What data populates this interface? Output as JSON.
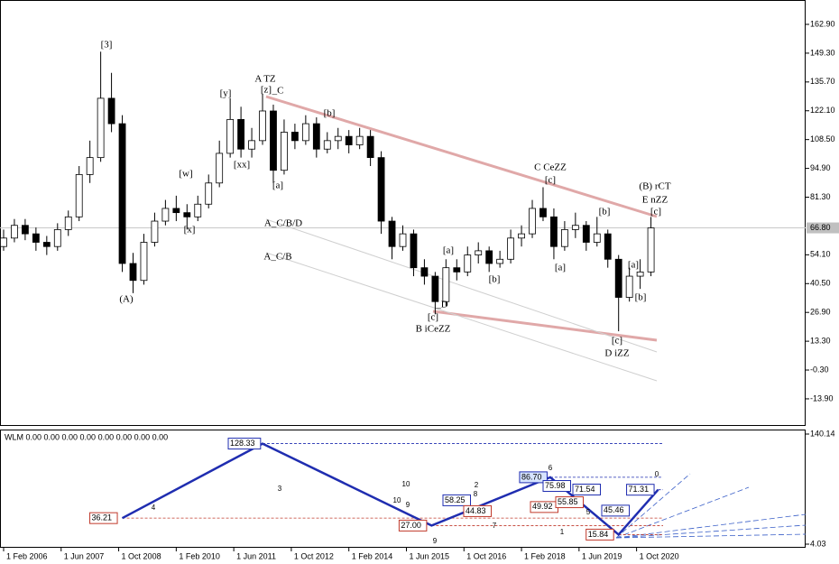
{
  "chart_data": [
    {
      "type": "candlestick",
      "x": [
        "2006-02-01",
        "2006-05-01",
        "2006-08-01",
        "2006-11-01",
        "2007-02-01",
        "2007-05-01",
        "2007-08-01",
        "2007-11-01",
        "2008-02-01",
        "2008-05-01",
        "2008-08-01",
        "2008-11-01",
        "2009-02-01",
        "2009-05-01",
        "2009-08-01",
        "2009-11-01",
        "2010-02-01",
        "2010-05-01",
        "2010-08-01",
        "2010-11-01",
        "2011-02-01",
        "2011-05-01",
        "2011-08-01",
        "2011-11-01",
        "2012-02-01",
        "2012-05-01",
        "2012-08-01",
        "2012-11-01",
        "2013-02-01",
        "2013-05-01",
        "2013-08-01",
        "2013-11-01",
        "2014-02-01",
        "2014-05-01",
        "2014-08-01",
        "2014-11-01",
        "2015-02-01",
        "2015-05-01",
        "2015-08-01",
        "2015-11-01",
        "2016-02-01",
        "2016-05-01",
        "2016-08-01",
        "2016-11-01",
        "2017-02-01",
        "2017-05-01",
        "2017-08-01",
        "2017-11-01",
        "2018-02-01",
        "2018-05-01",
        "2018-08-01",
        "2018-11-01",
        "2019-02-01",
        "2019-05-01",
        "2019-08-01",
        "2019-11-01",
        "2020-02-01",
        "2020-05-01",
        "2020-08-01",
        "2020-11-01",
        "2021-02-01"
      ],
      "open": [
        58,
        62,
        68,
        64,
        60,
        58,
        66,
        72,
        92,
        100,
        128,
        116,
        50,
        42,
        60,
        70,
        76,
        74,
        72,
        78,
        88,
        102,
        118,
        104,
        108,
        122,
        94,
        112,
        108,
        116,
        104,
        108,
        110,
        106,
        110,
        100,
        70,
        58,
        64,
        48,
        44,
        32,
        48,
        46,
        54,
        56,
        50,
        52,
        62,
        64,
        76,
        72,
        58,
        66,
        68,
        60,
        64,
        52,
        34,
        44,
        46
      ],
      "high": [
        66,
        71,
        71,
        67,
        63,
        69,
        75,
        96,
        108,
        150,
        140,
        120,
        55,
        64,
        74,
        80,
        82,
        78,
        82,
        92,
        108,
        128,
        124,
        114,
        130,
        125,
        118,
        116,
        120,
        119,
        112,
        114,
        113,
        114,
        113,
        103,
        72,
        68,
        66,
        52,
        46,
        52,
        52,
        58,
        60,
        58,
        56,
        66,
        68,
        80,
        86,
        76,
        70,
        74,
        70,
        72,
        66,
        54,
        48,
        52,
        72
      ],
      "low": [
        56,
        60,
        61,
        56,
        54,
        56,
        63,
        70,
        88,
        98,
        112,
        46,
        36,
        40,
        58,
        68,
        70,
        66,
        70,
        76,
        86,
        100,
        100,
        100,
        106,
        88,
        92,
        104,
        106,
        100,
        102,
        104,
        102,
        104,
        96,
        64,
        52,
        56,
        44,
        40,
        26,
        30,
        42,
        44,
        50,
        46,
        48,
        50,
        58,
        62,
        70,
        52,
        56,
        62,
        56,
        58,
        48,
        18,
        32,
        38,
        44
      ],
      "close": [
        62,
        68,
        64,
        60,
        58,
        66,
        72,
        92,
        100,
        128,
        116,
        50,
        42,
        60,
        70,
        76,
        74,
        72,
        78,
        88,
        102,
        118,
        104,
        108,
        122,
        94,
        112,
        108,
        116,
        104,
        108,
        110,
        106,
        110,
        100,
        70,
        58,
        64,
        48,
        44,
        32,
        48,
        46,
        54,
        56,
        50,
        52,
        62,
        64,
        76,
        72,
        58,
        66,
        68,
        60,
        64,
        52,
        34,
        44,
        46,
        66.8
      ],
      "up_color": "#ffffff",
      "down_color": "#000000",
      "xlim": [
        "2006-01-01",
        "2024-09-01"
      ],
      "ylim": [
        -26.7,
        174.4
      ],
      "yticks": [
        {
          "value": 162.9,
          "label": "162.90"
        },
        {
          "value": 149.3,
          "label": "149.30"
        },
        {
          "value": 135.7,
          "label": "135.70"
        },
        {
          "value": 122.1,
          "label": "122.10"
        },
        {
          "value": 108.5,
          "label": "108.50"
        },
        {
          "value": 94.9,
          "label": "94.90"
        },
        {
          "value": 81.3,
          "label": "81.30"
        },
        {
          "value": 54.1,
          "label": "54.10"
        },
        {
          "value": 40.5,
          "label": "40.50"
        },
        {
          "value": 26.9,
          "label": "26.90"
        },
        {
          "value": 13.3,
          "label": "13.30"
        },
        {
          "value": -0.3,
          "label": "-0.30"
        },
        {
          "value": -13.9,
          "label": "-13.90"
        }
      ],
      "current_price": {
        "value": 66.8,
        "label": "66.80"
      },
      "annotations": [
        {
          "text": "[3]",
          "color": "#2a8fbf"
        },
        {
          "text": "(A)",
          "color": "#2b2bd0"
        },
        {
          "text": "[w]",
          "color": "#2e8b2e"
        },
        {
          "text": "[x]",
          "color": "#2e8b2e"
        },
        {
          "text": "[y]",
          "color": "#2e8b2e"
        },
        {
          "text": "[xx]",
          "color": "#2e8b2e"
        },
        {
          "text": "[z]",
          "color": "#2e8b2e"
        },
        {
          "text": "A TZ",
          "color": "#c0392b"
        },
        {
          "text": "_C",
          "color": "#c9a0a0"
        },
        {
          "text": "[a]",
          "color": "#2e8b2e"
        },
        {
          "text": "[b]",
          "color": "#2e8b2e"
        },
        {
          "text": "A_C/B/D",
          "color": "#bbbbbb"
        },
        {
          "text": "A_C/B",
          "color": "#bbbbbb"
        },
        {
          "text": "[a]",
          "color": "#2e8b2e"
        },
        {
          "text": "_D",
          "color": "#c9a0a0"
        },
        {
          "text": "[c]",
          "color": "#2e8b2e"
        },
        {
          "text": "B iCeZZ",
          "color": "#c0392b"
        },
        {
          "text": "[b]",
          "color": "#2e8b2e"
        },
        {
          "text": "C CeZZ",
          "color": "#c0392b"
        },
        {
          "text": "[c]",
          "color": "#2e8b2e"
        },
        {
          "text": "[a]",
          "color": "#2e8b2e"
        },
        {
          "text": "[b]",
          "color": "#2e8b2e"
        },
        {
          "text": "[c]",
          "color": "#2e8b2e"
        },
        {
          "text": "D iZZ",
          "color": "#c0392b"
        },
        {
          "text": "(B) rCT",
          "color": "#2b2bd0"
        },
        {
          "text": "E nZZ",
          "color": "#c0392b"
        },
        {
          "text": "[c]",
          "color": "#2e8b2e"
        },
        {
          "text": "[a]",
          "color": "#2e8b2e"
        },
        {
          "text": "[b]",
          "color": "#2e8b2e"
        }
      ]
    },
    {
      "type": "line",
      "title": "WLM 0.00 0.00 0.00 0.00 0.00 0.00 0.00 0.00",
      "x": [
        "2008-11-01",
        "2012-02-01",
        "2016-01-01",
        "2018-10-01",
        "2020-05-01",
        "2021-04-01"
      ],
      "values": [
        36.21,
        128.33,
        27,
        86.7,
        15.84,
        71.31
      ],
      "value_labels": [
        "36.21",
        "128.33",
        "27.00",
        "86.70",
        "15.84",
        "71.31"
      ],
      "color": "#1f2db0",
      "xlim": [
        "2006-01-01",
        "2024-09-01"
      ],
      "ylim": [
        -0.43,
        144.6
      ],
      "yticks": [
        {
          "value": 140.14,
          "label": "140.14"
        },
        {
          "value": 4.03,
          "label": "4.03"
        }
      ],
      "xticks": [
        {
          "value": "2006-02-01",
          "label": "1 Feb 2006"
        },
        {
          "value": "2007-06-01",
          "label": "1 Jun 2007"
        },
        {
          "value": "2008-10-01",
          "label": "1 Oct 2008"
        },
        {
          "value": "2010-02-01",
          "label": "1 Feb 2010"
        },
        {
          "value": "2011-06-01",
          "label": "1 Jun 2011"
        },
        {
          "value": "2012-10-01",
          "label": "1 Oct 2012"
        },
        {
          "value": "2014-02-01",
          "label": "1 Feb 2014"
        },
        {
          "value": "2015-06-01",
          "label": "1 Jun 2015"
        },
        {
          "value": "2016-10-01",
          "label": "1 Oct 2016"
        },
        {
          "value": "2018-02-01",
          "label": "1 Feb 2018"
        },
        {
          "value": "2019-06-01",
          "label": "1 Jun 2019"
        },
        {
          "value": "2020-10-01",
          "label": "1 Oct 2020"
        }
      ],
      "levels": [
        {
          "value": 58.25,
          "label": "58.25",
          "color": "#1f2db0"
        },
        {
          "value": 44.83,
          "label": "44.83",
          "color": "#c0392b"
        },
        {
          "value": 49.92,
          "label": "49.92",
          "color": "#c0392b"
        },
        {
          "value": 55.85,
          "label": "55.85",
          "color": "#c0392b"
        },
        {
          "value": 75.98,
          "label": "75.98",
          "color": "#1f2db0"
        },
        {
          "value": 71.54,
          "label": "71.54",
          "color": "#1f2db0"
        },
        {
          "value": 45.46,
          "label": "45.46",
          "color": "#1f2db0"
        }
      ],
      "annotations": [
        {
          "text": "4",
          "color": "#1f2db0"
        },
        {
          "text": "3",
          "color": "#1f2db0"
        },
        {
          "text": "10",
          "color": "#c0392b"
        },
        {
          "text": "10",
          "color": "#c0392b"
        },
        {
          "text": "9",
          "color": "#c0392b"
        },
        {
          "text": "9",
          "color": "#c0392b"
        },
        {
          "text": "2",
          "color": "#1f2db0"
        },
        {
          "text": "8",
          "color": "#1f2db0"
        },
        {
          "text": "7",
          "color": "#c0392b"
        },
        {
          "text": "6",
          "color": "#c0392b"
        },
        {
          "text": "5",
          "color": "#1f2db0"
        },
        {
          "text": "1",
          "color": "#1f2db0"
        },
        {
          "text": "0",
          "color": "#1f2db0"
        }
      ]
    }
  ]
}
